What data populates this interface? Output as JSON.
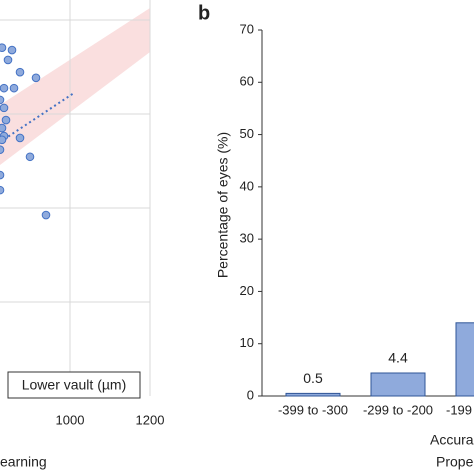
{
  "chart_data": [
    {
      "type": "scatter",
      "x": [
        830,
        855,
        845,
        875,
        835,
        860,
        915,
        825,
        835,
        840,
        830,
        835,
        830,
        875,
        900,
        825,
        825,
        825,
        940
      ],
      "y": [
        1141,
        1136,
        1115,
        1089,
        1055,
        1055,
        1077,
        1030,
        1013,
        987,
        970,
        953,
        945,
        949,
        909,
        924,
        870,
        838,
        785
      ],
      "xlim": [
        825,
        1200
      ],
      "xticks": [
        1000,
        1200
      ],
      "ylim": [
        400,
        1217
      ],
      "ygrid": [
        600,
        800,
        1000,
        1200
      ],
      "color": "#8faadc",
      "edge_color": "#4472c4",
      "legend": "Lower vault (µm)",
      "x_label": "earning"
    },
    {
      "type": "bar",
      "panel": "b",
      "categories": [
        "-399 to -300",
        "-299 to -200",
        "-199"
      ],
      "values": [
        0.5,
        4.4,
        14
      ],
      "value_labels": [
        "0.5",
        "4.4",
        null
      ],
      "color": "#8faadc",
      "edge_color": "#2f5597",
      "ylim": [
        0,
        70
      ],
      "yticks": [
        0,
        10,
        20,
        30,
        40,
        50,
        60,
        70
      ],
      "y_label": "Percentage of eyes (%)",
      "x_label": [
        "Accura",
        "Prope"
      ]
    }
  ]
}
